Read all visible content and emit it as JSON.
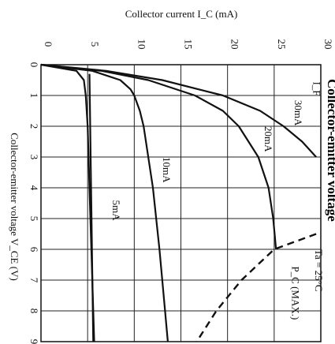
{
  "chart_data": {
    "type": "line",
    "title": "Collector-emitter voltage",
    "xlabel": "Collector-emitter voltage V_CE (V)",
    "ylabel": "Collector current I_C (mA)",
    "xlim": [
      0,
      9
    ],
    "ylim": [
      0,
      30
    ],
    "x_ticks": [
      "0",
      "1",
      "2",
      "3",
      "4",
      "5",
      "6",
      "7",
      "8",
      "9"
    ],
    "y_ticks": [
      "0",
      "5",
      "10",
      "15",
      "20",
      "25",
      "30"
    ],
    "grid": true,
    "annotations": {
      "ta": "Ta = 25°C",
      "if_prefix": "I_F",
      "pc": "P_C (MAX.)"
    },
    "series": [
      {
        "name": "5mA",
        "label": "5mA",
        "x": [
          0,
          0.2,
          0.5,
          1,
          2,
          4,
          6,
          8,
          9
        ],
        "values": [
          0,
          3.8,
          4.6,
          4.8,
          5.0,
          5.2,
          5.4,
          5.6,
          5.7
        ]
      },
      {
        "name": "10mA",
        "label": "10mA",
        "x": [
          0,
          0.2,
          0.5,
          0.8,
          1,
          1.5,
          2,
          4,
          6,
          8,
          9
        ],
        "values": [
          0,
          5.5,
          8.5,
          9.6,
          10.0,
          10.6,
          11.0,
          12.0,
          12.7,
          13.3,
          13.6
        ]
      },
      {
        "name": "20mA",
        "label": "20mA",
        "x": [
          0,
          0.2,
          0.5,
          1,
          1.5,
          2,
          3,
          4,
          5,
          6
        ],
        "values": [
          0,
          6.5,
          11.5,
          16.5,
          19.5,
          21.2,
          23.3,
          24.4,
          24.9,
          25.2
        ]
      },
      {
        "name": "30mA",
        "label": "30mA",
        "x": [
          0,
          0.2,
          0.5,
          1,
          1.5,
          2,
          2.5,
          3
        ],
        "values": [
          0,
          7.0,
          13.0,
          19.5,
          23.5,
          26.0,
          28.0,
          29.5
        ]
      }
    ],
    "pc_max_curve": {
      "name": "P_C (MAX.)",
      "x": [
        5.5,
        6,
        7,
        8,
        9
      ],
      "values": [
        29.5,
        25.0,
        21.5,
        18.8,
        16.7
      ]
    },
    "extra_segments": [
      {
        "x": [
          0.3,
          9
        ],
        "values": [
          5.2,
          5.6
        ]
      }
    ]
  }
}
